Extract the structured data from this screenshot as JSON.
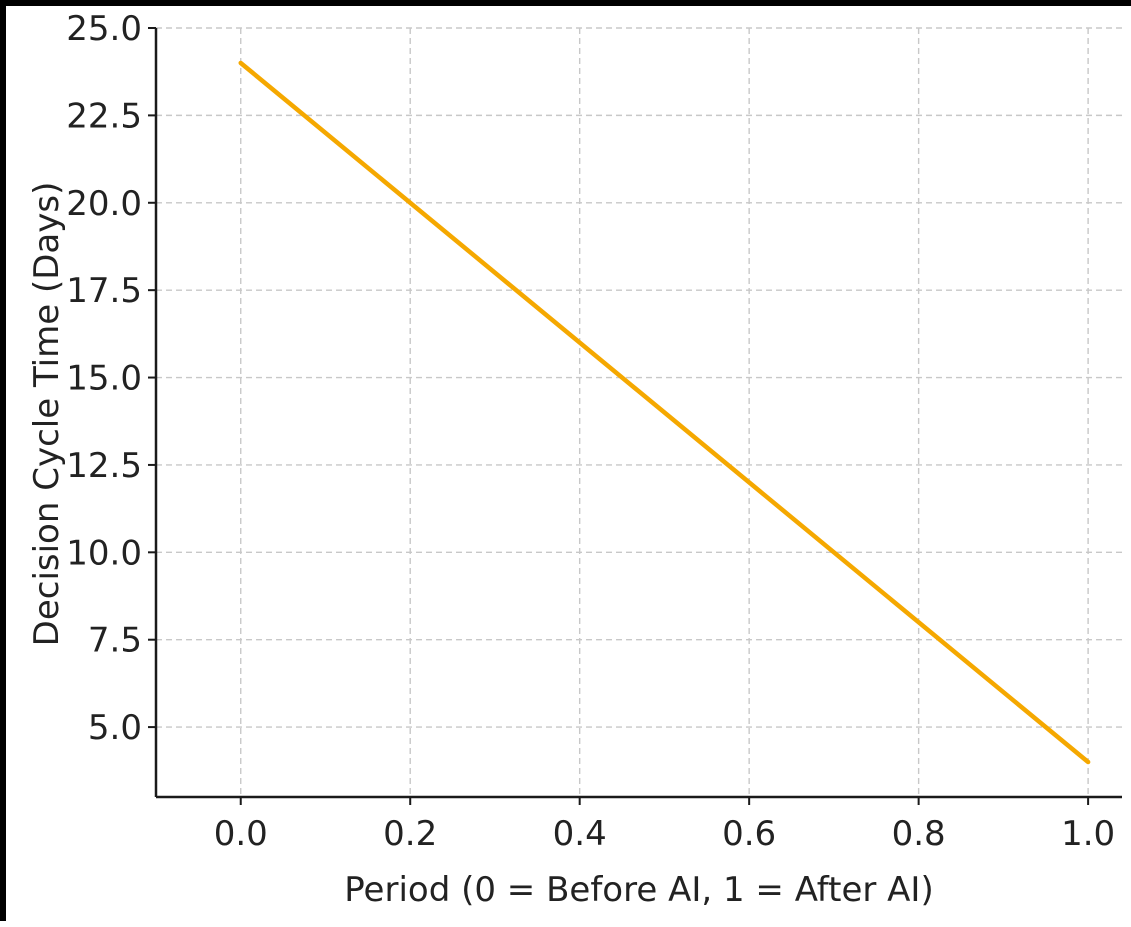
{
  "chart_data": {
    "type": "line",
    "title": "",
    "xlabel": "Period (0 = Before AI, 1 = After AI)",
    "ylabel": "Decision Cycle Time (Days)",
    "xlim": [
      -0.1,
      1.04
    ],
    "ylim": [
      3.0,
      25.0
    ],
    "x_ticks": [
      0.0,
      0.2,
      0.4,
      0.6,
      0.8,
      1.0
    ],
    "x_tick_labels": [
      "0.0",
      "0.2",
      "0.4",
      "0.6",
      "0.8",
      "1.0"
    ],
    "y_ticks": [
      5.0,
      7.5,
      10.0,
      12.5,
      15.0,
      17.5,
      20.0,
      22.5,
      25.0
    ],
    "y_tick_labels": [
      "5.0",
      "7.5",
      "10.0",
      "12.5",
      "15.0",
      "17.5",
      "20.0",
      "22.5",
      "25.0"
    ],
    "grid": true,
    "legend": "none",
    "series": [
      {
        "color": "#f5a800",
        "x": [
          0.0,
          1.0
        ],
        "y": [
          24.0,
          4.0
        ]
      }
    ]
  }
}
